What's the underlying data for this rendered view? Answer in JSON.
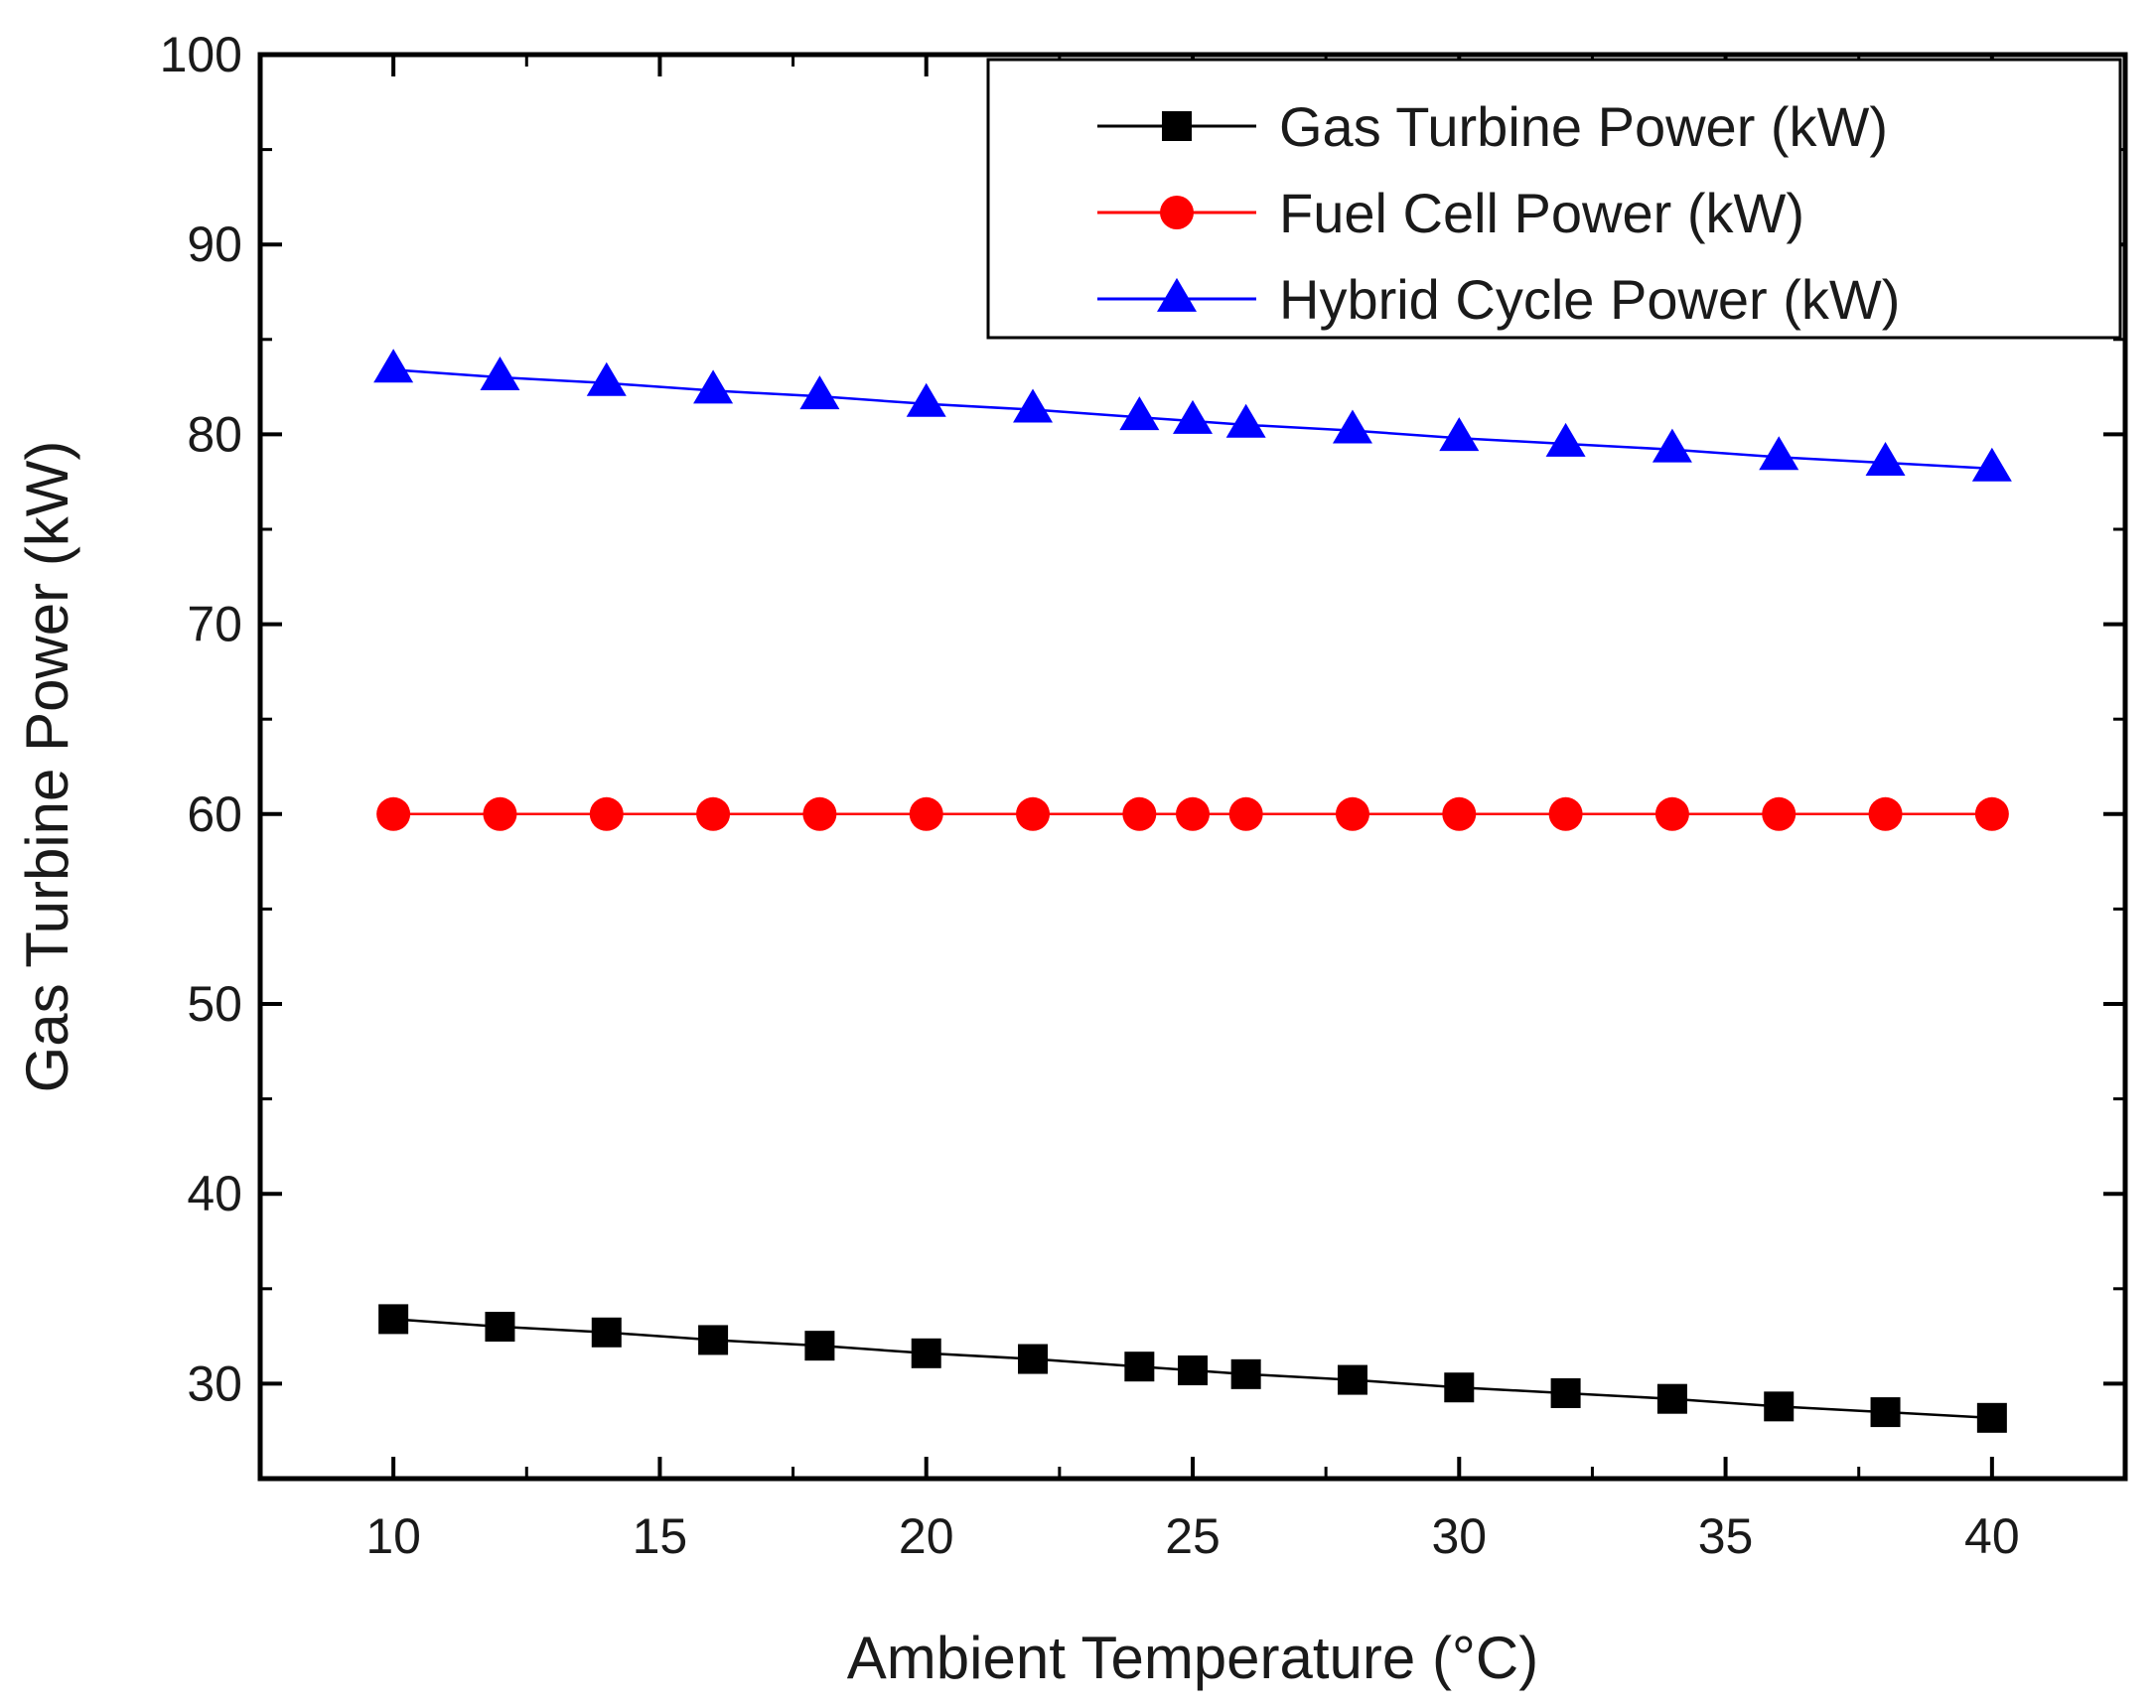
{
  "chart_data": {
    "type": "line",
    "title": "",
    "xlabel": "Ambient Temperature (°C)",
    "ylabel": "Gas Turbine Power (kW)",
    "xlim": [
      7.5,
      42.5
    ],
    "ylim": [
      25,
      100
    ],
    "xticks": [
      10,
      15,
      20,
      25,
      30,
      35,
      40
    ],
    "yticks": [
      30,
      40,
      50,
      60,
      70,
      80,
      90,
      100
    ],
    "grid": false,
    "legend_position": "top-right",
    "x": [
      10,
      12,
      14,
      16,
      18,
      20,
      22,
      24,
      25,
      26,
      28,
      30,
      32,
      34,
      36,
      38,
      40
    ],
    "series": [
      {
        "name": "Gas Turbine Power (kW)",
        "color": "#000000",
        "marker": "square",
        "values": [
          33.4,
          33.0,
          32.7,
          32.3,
          32.0,
          31.6,
          31.3,
          30.9,
          30.7,
          30.5,
          30.2,
          29.8,
          29.5,
          29.2,
          28.8,
          28.5,
          28.2
        ]
      },
      {
        "name": "Fuel Cell Power (kW)",
        "color": "#ff0000",
        "marker": "circle",
        "values": [
          60,
          60,
          60,
          60,
          60,
          60,
          60,
          60,
          60,
          60,
          60,
          60,
          60,
          60,
          60,
          60,
          60
        ]
      },
      {
        "name": "Hybrid Cycle Power (kW)",
        "color": "#0000ff",
        "marker": "triangle",
        "values": [
          83.4,
          83.0,
          82.7,
          82.3,
          82.0,
          81.6,
          81.3,
          80.9,
          80.7,
          80.5,
          80.2,
          79.8,
          79.5,
          79.2,
          78.8,
          78.5,
          78.2
        ]
      }
    ]
  }
}
